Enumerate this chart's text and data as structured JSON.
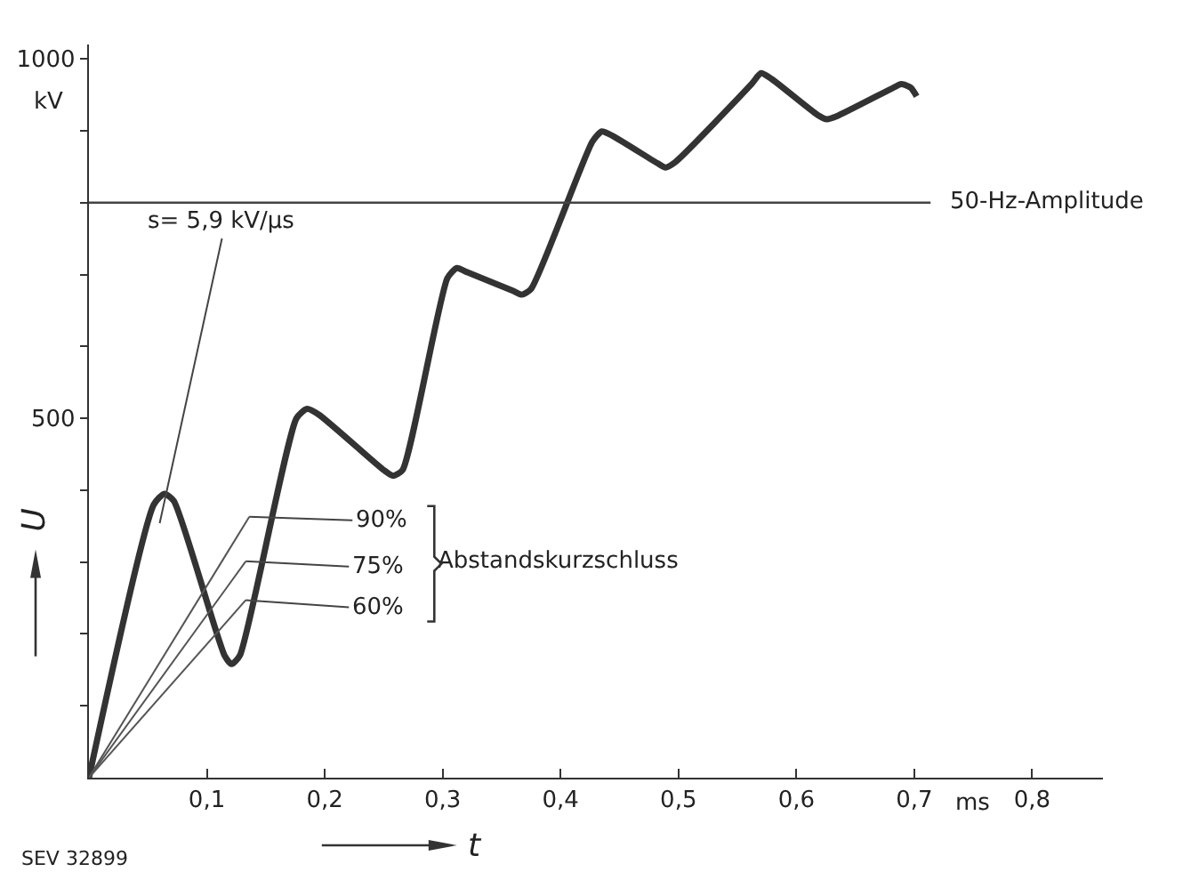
{
  "chart_data": {
    "type": "line",
    "xlabel": "t",
    "ylabel": "U",
    "xlim": [
      0,
      0.86
    ],
    "ylim": [
      0,
      1020
    ],
    "xticks": [
      {
        "value": 0.1,
        "label": "0,1"
      },
      {
        "value": 0.2,
        "label": "0,2"
      },
      {
        "value": 0.3,
        "label": "0,3"
      },
      {
        "value": 0.4,
        "label": "0,4"
      },
      {
        "value": 0.5,
        "label": "0,5"
      },
      {
        "value": 0.6,
        "label": "0,6"
      },
      {
        "value": 0.7,
        "label": "0,7"
      },
      {
        "value": 0.8,
        "label": "0,8"
      }
    ],
    "yticks": [
      {
        "value": 100,
        "label": null
      },
      {
        "value": 200,
        "label": null
      },
      {
        "value": 300,
        "label": null
      },
      {
        "value": 400,
        "label": null
      },
      500,
      {
        "value": 600,
        "label": null
      },
      {
        "value": 700,
        "label": null
      },
      {
        "value": 800,
        "label": null
      },
      {
        "value": 900,
        "label": null
      },
      1000
    ],
    "series": [
      {
        "color": "#333333",
        "x": [
          0,
          0.055,
          0.064,
          0.072,
          0.115,
          0.121,
          0.128,
          0.176,
          0.185,
          0.195,
          0.25,
          0.258,
          0.266,
          0.304,
          0.312,
          0.321,
          0.36,
          0.367,
          0.375,
          0.427,
          0.435,
          0.444,
          0.482,
          0.489,
          0.497,
          0.562,
          0.57,
          0.579,
          0.618,
          0.626,
          0.634,
          0.68,
          0.689,
          0.697,
          0.702
        ],
        "values": [
          0,
          380,
          395,
          385,
          170,
          158,
          170,
          500,
          513,
          505,
          428,
          420,
          428,
          695,
          709,
          703,
          677,
          672,
          680,
          885,
          899,
          893,
          855,
          849,
          856,
          965,
          980,
          972,
          922,
          916,
          920,
          958,
          965,
          960,
          948
        ]
      },
      {
        "color": "#555555",
        "x": [
          0,
          0.136
        ],
        "values": [
          0,
          363
        ]
      },
      {
        "color": "#555555",
        "x": [
          0,
          0.133
        ],
        "values": [
          0,
          301
        ]
      },
      {
        "color": "#555555",
        "x": [
          0,
          0.133
        ],
        "values": [
          0,
          247
        ]
      }
    ],
    "ref_lines": [
      {
        "axis": "y",
        "value": 800,
        "label": "50-Hz-Amplitude",
        "color": "#444444"
      }
    ],
    "annotations": [
      "kV",
      "ms",
      "SEV 32899",
      "Abstandskurzschluss",
      {
        "text": "s= 5,9 kV/µs",
        "x": 0.06,
        "y": 354
      },
      {
        "text": "90%",
        "x": 0.136,
        "y": 363
      },
      {
        "text": "75%",
        "x": 0.133,
        "y": 301
      },
      {
        "text": "60%",
        "x": 0.133,
        "y": 247
      }
    ],
    "grid": false,
    "marker": "none",
    "line_style": "solid"
  }
}
